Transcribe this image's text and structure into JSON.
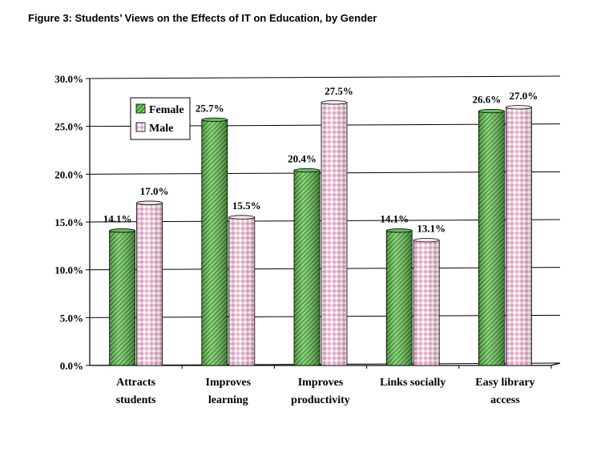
{
  "title": "Figure 3: Students’ Views on the Effects of IT on Education, by Gender",
  "chart_data": {
    "type": "bar",
    "style": "3d-cylinder",
    "categories": [
      [
        "Attracts",
        "students"
      ],
      [
        "Improves",
        "learning"
      ],
      [
        "Improves",
        "productivity"
      ],
      [
        "Links socially"
      ],
      [
        "Easy library",
        "access"
      ]
    ],
    "series": [
      {
        "name": "Female",
        "values": [
          14.1,
          25.7,
          20.4,
          14.1,
          26.6
        ],
        "labels": [
          "14.1%",
          "25.7%",
          "20.4%",
          "14.1%",
          "26.6%"
        ],
        "color": "#2e9a3e",
        "pattern": "diagonal-hatch"
      },
      {
        "name": "Male",
        "values": [
          17.0,
          15.5,
          27.5,
          13.1,
          27.0
        ],
        "labels": [
          "17.0%",
          "15.5%",
          "27.5%",
          "13.1%",
          "27.0%"
        ],
        "color": "#f5c8e0",
        "pattern": "diamond-check"
      }
    ],
    "ylim": [
      0,
      30
    ],
    "yticks": [
      0,
      5,
      10,
      15,
      20,
      25,
      30
    ],
    "ytick_labels": [
      "0.0%",
      "5.0%",
      "10.0%",
      "15.0%",
      "20.0%",
      "25.0%",
      "30.0%"
    ],
    "grid": true,
    "legend": "top-left",
    "xlabel": "",
    "ylabel": ""
  }
}
